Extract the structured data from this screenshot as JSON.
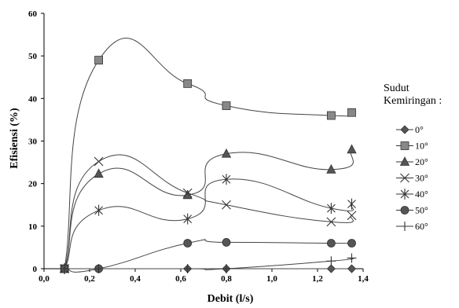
{
  "chart_data": {
    "type": "line",
    "xlabel": "Debit (l/s)",
    "ylabel": "Efisiensi (%)",
    "xlim": [
      0.0,
      1.4
    ],
    "ylim": [
      0,
      60
    ],
    "x_ticks": [
      "0,0",
      "0,2",
      "0,4",
      "0,6",
      "0,8",
      "1,0",
      "1,2",
      "1,4"
    ],
    "y_ticks": [
      "0",
      "10",
      "20",
      "30",
      "40",
      "50",
      "60"
    ],
    "grid": false,
    "smooth": true,
    "legend_title": [
      "Sudut",
      "Kemiringan :"
    ],
    "legend_position": "right",
    "series": [
      {
        "name": "0°",
        "marker": "diamond",
        "x": [
          0.09,
          0.24,
          0.63,
          0.8,
          1.26,
          1.35
        ],
        "y": [
          0,
          0,
          0,
          0,
          0,
          0
        ]
      },
      {
        "name": "10°",
        "marker": "square",
        "x": [
          0.09,
          0.24,
          0.63,
          0.8,
          1.26,
          1.35
        ],
        "y": [
          0,
          49,
          43.5,
          38.3,
          36,
          36.7
        ]
      },
      {
        "name": "20°",
        "marker": "triangle",
        "x": [
          0.09,
          0.24,
          0.63,
          0.8,
          1.26,
          1.35
        ],
        "y": [
          0,
          22.3,
          17.3,
          27,
          23.3,
          28
        ]
      },
      {
        "name": "30°",
        "marker": "x",
        "x": [
          0.09,
          0.24,
          0.63,
          0.8,
          1.26,
          1.35
        ],
        "y": [
          0,
          25.2,
          17.8,
          15,
          11,
          12.5
        ]
      },
      {
        "name": "40°",
        "marker": "star",
        "x": [
          0.09,
          0.24,
          0.63,
          0.8,
          1.26,
          1.35
        ],
        "y": [
          0,
          13.7,
          11.7,
          21,
          14.2,
          15.2
        ]
      },
      {
        "name": "50°",
        "marker": "circle",
        "x": [
          0.09,
          0.24,
          0.63,
          0.8,
          1.26,
          1.35
        ],
        "y": [
          0,
          0,
          6,
          6.2,
          6,
          6
        ]
      },
      {
        "name": "60°",
        "marker": "plus",
        "x": [
          0.09,
          0.24,
          0.63,
          0.8,
          1.26,
          1.35
        ],
        "y": [
          0,
          0,
          0,
          0,
          1.8,
          2.5
        ]
      }
    ]
  }
}
